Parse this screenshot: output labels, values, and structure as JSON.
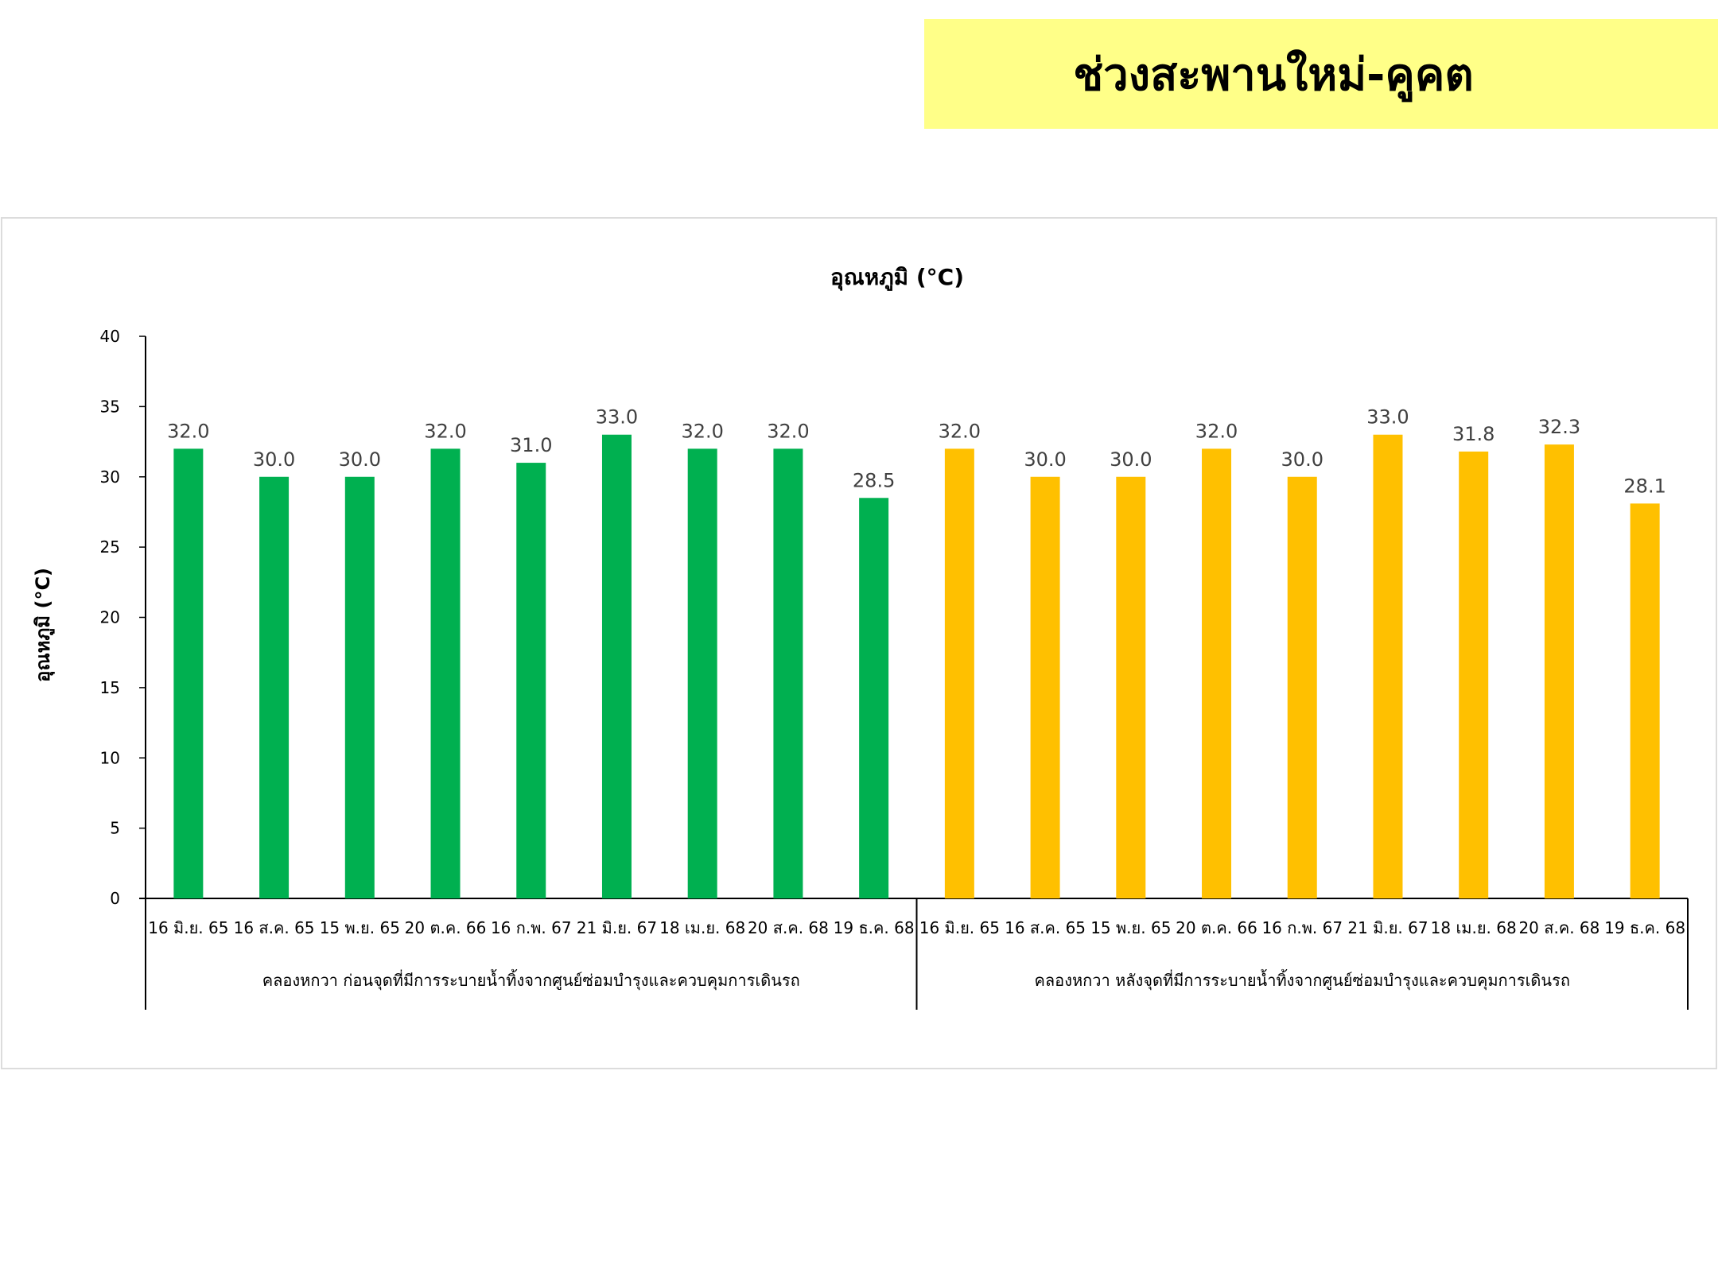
{
  "banner": {
    "title": "ช่วงสะพานใหม่-คูคต"
  },
  "chart_data": {
    "type": "bar",
    "title": "อุณหภูมิ (°C)",
    "xlabel": "",
    "ylabel": "อุณหภูมิ (°C)",
    "ylim": [
      0,
      40
    ],
    "yticks": [
      "0",
      "5",
      "10",
      "15",
      "20",
      "25",
      "30",
      "35",
      "40"
    ],
    "grid": false,
    "groups": [
      {
        "name": "คลองหกวา ก่อนจุดที่มีการระบายน้ำทิ้งจากศูนย์ซ่อมบำรุงและควบคุมการเดินรถ",
        "color": "#00b050",
        "categories": [
          "16 มิ.ย. 65",
          "16 ส.ค. 65",
          "15 พ.ย. 65",
          "20 ต.ค. 66",
          "16 ก.พ. 67",
          "21 มิ.ย. 67",
          "18 เม.ย. 68",
          "20 ส.ค. 68",
          "19 ธ.ค. 68"
        ],
        "values": [
          32.0,
          30.0,
          30.0,
          32.0,
          31.0,
          33.0,
          32.0,
          32.0,
          28.5
        ],
        "labels": [
          "32.0",
          "30.0",
          "30.0",
          "32.0",
          "31.0",
          "33.0",
          "32.0",
          "32.0",
          "28.5"
        ]
      },
      {
        "name": "คลองหกวา หลังจุดที่มีการระบายน้ำทิ้งจากศูนย์ซ่อมบำรุงและควบคุมการเดินรถ",
        "color": "#ffc000",
        "categories": [
          "16 มิ.ย. 65",
          "16 ส.ค. 65",
          "15 พ.ย. 65",
          "20 ต.ค. 66",
          "16 ก.พ. 67",
          "21 มิ.ย. 67",
          "18 เม.ย. 68",
          "20 ส.ค. 68",
          "19 ธ.ค. 68"
        ],
        "values": [
          32.0,
          30.0,
          30.0,
          32.0,
          30.0,
          33.0,
          31.8,
          32.3,
          28.1
        ],
        "labels": [
          "32.0",
          "30.0",
          "30.0",
          "32.0",
          "30.0",
          "33.0",
          "31.8",
          "32.3",
          "28.1"
        ]
      }
    ]
  }
}
